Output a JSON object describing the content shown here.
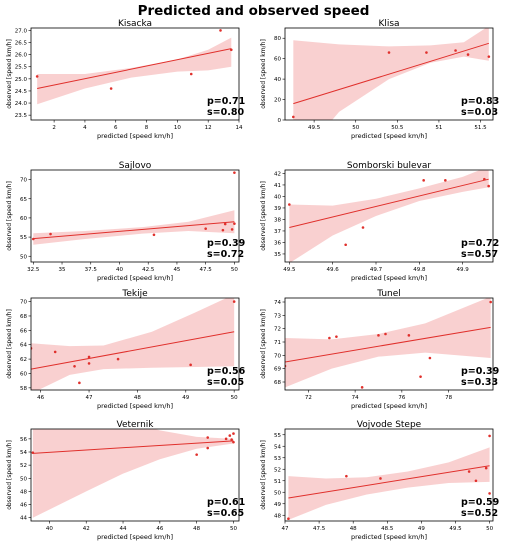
{
  "page": {
    "title": "Predicted and observed speed"
  },
  "theme": {
    "line_color": "#e0302c",
    "band_color": "#f8c8c8",
    "point_color": "#e0302c",
    "axis_color": "#000000"
  },
  "chart_data": [
    {
      "type": "scatter",
      "title": "Kisacka",
      "xlabel": "predicted [speed km/h]",
      "ylabel": "observed [speed km/h]",
      "xlim": [
        0.5,
        14.0
      ],
      "ylim": [
        23.3,
        27.1
      ],
      "xticks": [
        2,
        4,
        6,
        8,
        10,
        12,
        14
      ],
      "yticks": [
        23.5,
        24.0,
        24.5,
        25.0,
        25.5,
        26.0,
        26.5,
        27.0
      ],
      "ytick_labels": [
        "23.5",
        "24.0",
        "24.5",
        "25.0",
        "25.5",
        "26.0",
        "26.5",
        "27.0"
      ],
      "points": [
        [
          0.9,
          25.1
        ],
        [
          5.7,
          24.6
        ],
        [
          10.9,
          25.2
        ],
        [
          12.8,
          27.0
        ],
        [
          13.5,
          26.2
        ]
      ],
      "fit": [
        [
          0.9,
          24.6
        ],
        [
          13.5,
          26.25
        ]
      ],
      "band_upper": [
        [
          0.9,
          25.2
        ],
        [
          4,
          25.2
        ],
        [
          7,
          25.45
        ],
        [
          10,
          25.8
        ],
        [
          12,
          26.2
        ],
        [
          13.5,
          26.7
        ]
      ],
      "band_lower": [
        [
          0.9,
          23.95
        ],
        [
          4,
          24.6
        ],
        [
          7,
          25.05
        ],
        [
          10,
          25.3
        ],
        [
          12,
          25.35
        ],
        [
          13.5,
          25.5
        ]
      ],
      "p": "p=0.71",
      "s": "s=0.80"
    },
    {
      "type": "scatter",
      "title": "Klisa",
      "xlabel": "predicted [speed km/h]",
      "ylabel": "observed [speed km/h]",
      "xlim": [
        49.15,
        51.65
      ],
      "ylim": [
        0,
        90
      ],
      "xticks": [
        49.5,
        50.0,
        50.5,
        51.0,
        51.5
      ],
      "yticks": [
        0,
        20,
        40,
        60,
        80
      ],
      "ytick_labels": [
        "0",
        "20",
        "40",
        "60",
        "80"
      ],
      "points": [
        [
          49.25,
          3
        ],
        [
          50.4,
          66
        ],
        [
          50.85,
          66
        ],
        [
          51.2,
          68
        ],
        [
          51.35,
          64
        ],
        [
          51.6,
          62
        ]
      ],
      "fit": [
        [
          49.25,
          16
        ],
        [
          51.6,
          75
        ]
      ],
      "band_upper": [
        [
          49.25,
          78
        ],
        [
          49.8,
          74
        ],
        [
          50.4,
          72
        ],
        [
          50.9,
          73
        ],
        [
          51.3,
          76
        ],
        [
          51.6,
          92
        ]
      ],
      "band_lower": [
        [
          49.25,
          -45
        ],
        [
          49.8,
          8
        ],
        [
          50.4,
          40
        ],
        [
          50.9,
          56
        ],
        [
          51.3,
          62
        ],
        [
          51.6,
          58
        ]
      ],
      "p": "p=0.83",
      "s": "s=0.03"
    },
    {
      "type": "scatter",
      "title": "Sajlovo",
      "xlabel": "predicted [speed km/h]",
      "ylabel": "observed [speed km/h]",
      "xlim": [
        32.3,
        50.4
      ],
      "ylim": [
        48.5,
        72.5
      ],
      "xticks": [
        32.5,
        35.0,
        37.5,
        40.0,
        42.5,
        45.0,
        47.5,
        50.0
      ],
      "yticks": [
        50,
        55,
        60,
        65,
        70
      ],
      "ytick_labels": [
        "50",
        "55",
        "60",
        "65",
        "70"
      ],
      "points": [
        [
          32.5,
          54.5
        ],
        [
          34.0,
          55.8
        ],
        [
          43.0,
          55.6
        ],
        [
          47.5,
          57.2
        ],
        [
          49.0,
          56.8
        ],
        [
          49.2,
          58.4
        ],
        [
          49.8,
          57.0
        ],
        [
          50.0,
          58.5
        ],
        [
          50.0,
          71.8
        ]
      ],
      "fit": [
        [
          32.5,
          54.6
        ],
        [
          50.0,
          59.0
        ]
      ],
      "band_upper": [
        [
          32.5,
          56.0
        ],
        [
          37,
          56.6
        ],
        [
          42,
          57.6
        ],
        [
          46,
          59.0
        ],
        [
          50.0,
          62.0
        ]
      ],
      "band_lower": [
        [
          32.5,
          53.0
        ],
        [
          37,
          54.5
        ],
        [
          42,
          55.9
        ],
        [
          46,
          56.6
        ],
        [
          50.0,
          56.0
        ]
      ],
      "p": "p=0.39",
      "s": "s=0.72"
    },
    {
      "type": "scatter",
      "title": "Somborski bulevar",
      "xlabel": "predicted [speed km/h]",
      "ylabel": "observed [speed km/h]",
      "xlim": [
        49.49,
        49.97
      ],
      "ylim": [
        34.3,
        42.3
      ],
      "xticks": [
        49.5,
        49.6,
        49.7,
        49.8,
        49.9
      ],
      "yticks": [
        35,
        36,
        37,
        38,
        39,
        40,
        41,
        42
      ],
      "ytick_labels": [
        "35",
        "36",
        "37",
        "38",
        "39",
        "40",
        "41",
        "42"
      ],
      "points": [
        [
          49.5,
          39.3
        ],
        [
          49.63,
          35.8
        ],
        [
          49.67,
          37.3
        ],
        [
          49.81,
          41.4
        ],
        [
          49.86,
          41.4
        ],
        [
          49.95,
          41.5
        ],
        [
          49.96,
          40.9
        ]
      ],
      "fit": [
        [
          49.5,
          37.3
        ],
        [
          49.96,
          41.5
        ]
      ],
      "band_upper": [
        [
          49.5,
          39.3
        ],
        [
          49.6,
          39.2
        ],
        [
          49.7,
          39.8
        ],
        [
          49.8,
          40.7
        ],
        [
          49.9,
          41.7
        ],
        [
          49.96,
          42.6
        ]
      ],
      "band_lower": [
        [
          49.5,
          34.2
        ],
        [
          49.6,
          36.6
        ],
        [
          49.7,
          38.3
        ],
        [
          49.8,
          39.6
        ],
        [
          49.9,
          40.4
        ],
        [
          49.96,
          40.8
        ]
      ],
      "p": "p=0.72",
      "s": "s=0.57"
    },
    {
      "type": "scatter",
      "title": "Tekije",
      "xlabel": "predicted [speed km/h]",
      "ylabel": "observed [speed km/h]",
      "xlim": [
        45.8,
        50.1
      ],
      "ylim": [
        57.7,
        70.5
      ],
      "xticks": [
        46,
        47,
        48,
        49,
        50
      ],
      "yticks": [
        58,
        60,
        62,
        64,
        66,
        68,
        70
      ],
      "ytick_labels": [
        "58",
        "60",
        "62",
        "64",
        "66",
        "68",
        "70"
      ],
      "points": [
        [
          45.8,
          63.5
        ],
        [
          46.3,
          63.0
        ],
        [
          46.7,
          61.0
        ],
        [
          46.8,
          58.7
        ],
        [
          47.0,
          62.3
        ],
        [
          47.0,
          61.4
        ],
        [
          47.6,
          62.0
        ],
        [
          49.1,
          61.2
        ],
        [
          50.0,
          70.0
        ]
      ],
      "fit": [
        [
          45.8,
          60.6
        ],
        [
          50.0,
          65.8
        ]
      ],
      "band_upper": [
        [
          45.8,
          64.2
        ],
        [
          46.6,
          63.8
        ],
        [
          47.3,
          63.9
        ],
        [
          48.3,
          65.8
        ],
        [
          49.2,
          68.5
        ],
        [
          50.0,
          71.0
        ]
      ],
      "band_lower": [
        [
          45.8,
          57.2
        ],
        [
          46.6,
          59.8
        ],
        [
          47.3,
          60.6
        ],
        [
          48.3,
          60.8
        ],
        [
          49.2,
          60.9
        ],
        [
          50.0,
          61.0
        ]
      ],
      "p": "p=0.56",
      "s": "s=0.05"
    },
    {
      "type": "scatter",
      "title": "Tunel",
      "xlabel": "predicted [speed km/h]",
      "ylabel": "observed [speed km/h]",
      "xlim": [
        71.0,
        79.9
      ],
      "ylim": [
        67.4,
        74.3
      ],
      "xticks": [
        72,
        74,
        76,
        78
      ],
      "yticks": [
        68,
        69,
        70,
        71,
        72,
        73,
        74
      ],
      "ytick_labels": [
        "68",
        "69",
        "70",
        "71",
        "72",
        "73",
        "74"
      ],
      "points": [
        [
          71.0,
          69.2
        ],
        [
          72.9,
          71.3
        ],
        [
          73.2,
          71.4
        ],
        [
          74.3,
          67.6
        ],
        [
          75.0,
          71.5
        ],
        [
          75.3,
          71.6
        ],
        [
          76.3,
          71.5
        ],
        [
          76.8,
          68.4
        ],
        [
          77.2,
          69.8
        ],
        [
          79.8,
          74.0
        ]
      ],
      "fit": [
        [
          71.0,
          69.5
        ],
        [
          79.8,
          72.1
        ]
      ],
      "band_upper": [
        [
          71.0,
          71.3
        ],
        [
          73,
          71.2
        ],
        [
          75,
          71.6
        ],
        [
          77,
          72.4
        ],
        [
          79.8,
          74.4
        ]
      ],
      "band_lower": [
        [
          71.0,
          67.6
        ],
        [
          73,
          69.0
        ],
        [
          75,
          69.9
        ],
        [
          77,
          70.2
        ],
        [
          79.8,
          69.8
        ]
      ],
      "p": "p=0.39",
      "s": "s=0.33"
    },
    {
      "type": "scatter",
      "title": "Veternik",
      "xlabel": "predicted [speed km/h]",
      "ylabel": "observed [speed km/h]",
      "xlim": [
        39.0,
        50.3
      ],
      "ylim": [
        43.5,
        57.5
      ],
      "xticks": [
        40,
        42,
        44,
        46,
        48,
        50
      ],
      "yticks": [
        44,
        46,
        48,
        50,
        52,
        54,
        56
      ],
      "ytick_labels": [
        "44",
        "46",
        "48",
        "50",
        "52",
        "54",
        "56"
      ],
      "points": [
        [
          39.1,
          53.9
        ],
        [
          48.0,
          53.6
        ],
        [
          48.6,
          54.6
        ],
        [
          48.6,
          56.2
        ],
        [
          49.6,
          56.0
        ],
        [
          49.8,
          56.5
        ],
        [
          49.9,
          55.9
        ],
        [
          50.0,
          55.5
        ],
        [
          50.0,
          56.8
        ]
      ],
      "fit": [
        [
          39.1,
          53.8
        ],
        [
          50.0,
          55.7
        ]
      ],
      "band_upper": [
        [
          39.1,
          64.0
        ],
        [
          42,
          60.5
        ],
        [
          44,
          58.8
        ],
        [
          46,
          57.3
        ],
        [
          48,
          56.3
        ],
        [
          50.0,
          56.0
        ]
      ],
      "band_lower": [
        [
          39.1,
          44.0
        ],
        [
          42,
          48.0
        ],
        [
          44,
          50.7
        ],
        [
          46,
          52.9
        ],
        [
          48,
          54.5
        ],
        [
          50.0,
          55.3
        ]
      ],
      "p": "p=0.61",
      "s": "s=0.65"
    },
    {
      "type": "scatter",
      "title": "Vojvode Stepe",
      "xlabel": "predicted [speed km/h]",
      "ylabel": "observed [speed km/h]",
      "xlim": [
        47.0,
        50.05
      ],
      "ylim": [
        47.5,
        55.5
      ],
      "xticks": [
        47.0,
        47.5,
        48.0,
        48.5,
        49.0,
        49.5,
        50.0
      ],
      "yticks": [
        48,
        49,
        50,
        51,
        52,
        53,
        54,
        55
      ],
      "ytick_labels": [
        "48",
        "49",
        "50",
        "51",
        "52",
        "53",
        "54",
        "55"
      ],
      "points": [
        [
          47.05,
          47.7
        ],
        [
          47.9,
          51.4
        ],
        [
          48.4,
          51.2
        ],
        [
          49.7,
          51.8
        ],
        [
          49.8,
          51.0
        ],
        [
          49.95,
          52.1
        ],
        [
          50.0,
          49.9
        ],
        [
          50.0,
          54.9
        ]
      ],
      "fit": [
        [
          47.05,
          49.5
        ],
        [
          50.0,
          52.3
        ]
      ],
      "band_upper": [
        [
          47.05,
          51.4
        ],
        [
          47.6,
          51.2
        ],
        [
          48.2,
          51.3
        ],
        [
          48.8,
          51.8
        ],
        [
          49.4,
          52.6
        ],
        [
          50.0,
          53.9
        ]
      ],
      "band_lower": [
        [
          47.05,
          47.6
        ],
        [
          47.6,
          48.9
        ],
        [
          48.2,
          49.8
        ],
        [
          48.8,
          50.4
        ],
        [
          49.4,
          50.8
        ],
        [
          50.0,
          50.9
        ]
      ],
      "p": "p=0.59",
      "s": "s=0.52"
    }
  ]
}
